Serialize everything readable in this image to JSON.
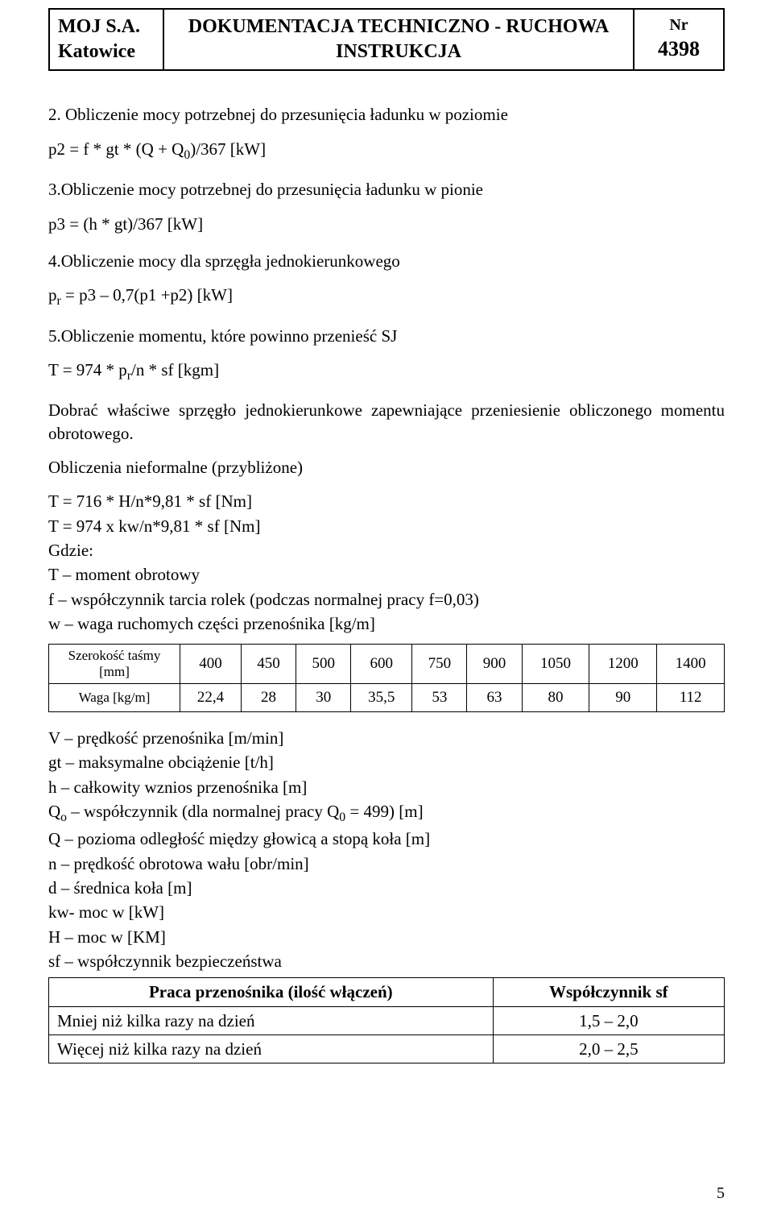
{
  "header": {
    "company1": "MOJ S.A.",
    "company2": "Katowice",
    "title1": "DOKUMENTACJA TECHNICZNO - RUCHOWA",
    "title2": "INSTRUKCJA",
    "nr_label": "Nr",
    "nr_value": "4398"
  },
  "sec2": {
    "title": "2. Obliczenie mocy potrzebnej do przesunięcia ładunku w poziomie",
    "formula_pre": "p2 = f * gt * (Q + Q",
    "formula_sub": "0",
    "formula_post": ")/367 [kW]"
  },
  "sec3": {
    "title": "3.Obliczenie mocy potrzebnej do przesunięcia ładunku w pionie",
    "formula": "p3 = (h * gt)/367 [kW]"
  },
  "sec4": {
    "title": "4.Obliczenie mocy dla sprzęgła jednokierunkowego",
    "formula_pre": "p",
    "formula_sub": "r",
    "formula_post": " = p3 – 0,7(p1 +p2) [kW]"
  },
  "sec5": {
    "title": "5.Obliczenie momentu, które powinno przenieść SJ",
    "formula_pre": "T = 974 * p",
    "formula_sub": "r",
    "formula_post": "/n * sf [kgm]",
    "note": "Dobrać właściwe sprzęgło jednokierunkowe zapewniające przeniesienie obliczonego momentu obrotowego."
  },
  "approx": {
    "title": "Obliczenia nieformalne (przybliżone)",
    "l1": "T = 716 * H/n*9,81 * sf [Nm]",
    "l2": "T = 974 x kw/n*9,81 * sf [Nm]",
    "l3": "Gdzie:",
    "l4": "T – moment obrotowy",
    "l5": "f – współczynnik tarcia rolek (podczas normalnej pracy f=0,03)",
    "l6": "w – waga ruchomych części przenośnika [kg/m]"
  },
  "table1": {
    "row1_label": "Szerokość taśmy [mm]",
    "row2_label": "Waga [kg/m]",
    "row1": [
      "400",
      "450",
      "500",
      "600",
      "750",
      "900",
      "1050",
      "1200",
      "1400"
    ],
    "row2": [
      "22,4",
      "28",
      "30",
      "35,5",
      "53",
      "63",
      "80",
      "90",
      "112"
    ]
  },
  "defs": {
    "l1": "V – prędkość przenośnika [m/min]",
    "l2": "gt – maksymalne obciążenie [t/h]",
    "l3": "h – całkowity wznios przenośnika [m]",
    "l4_pre": "Q",
    "l4_sub": "o",
    "l4_mid": " – współczynnik (dla normalnej pracy Q",
    "l4_sub2": "0",
    "l4_post": " = 499) [m]",
    "l5": "Q – pozioma odległość między głowicą a stopą koła [m]",
    "l6": "n – prędkość obrotowa wału [obr/min]",
    "l7": "d – średnica koła [m]",
    "l8": "kw- moc w [kW]",
    "l9": "H – moc w [KM]",
    "l10": "sf – współczynnik bezpieczeństwa"
  },
  "sf_table": {
    "h1": "Praca przenośnika (ilość włączeń)",
    "h2": "Współczynnik sf",
    "r1c1": "Mniej niż kilka razy na dzień",
    "r1c2": "1,5 – 2,0",
    "r2c1": "Więcej niż kilka razy na dzień",
    "r2c2": "2,0 – 2,5"
  },
  "pagenum": "5"
}
